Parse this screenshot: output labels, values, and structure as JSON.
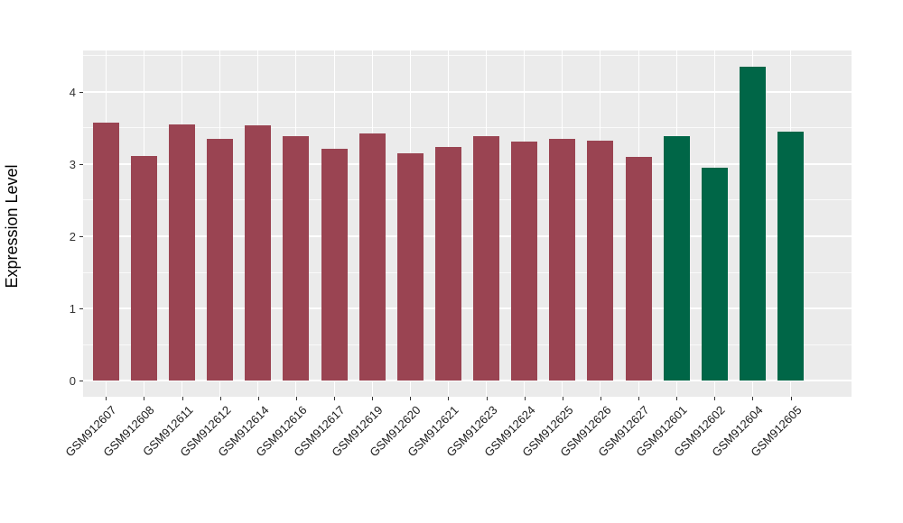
{
  "chart_data": {
    "type": "bar",
    "title": "",
    "xlabel": "",
    "ylabel": "Expression Level",
    "categories": [
      "GSM912607",
      "GSM912608",
      "GSM912611",
      "GSM912612",
      "GSM912614",
      "GSM912616",
      "GSM912617",
      "GSM912619",
      "GSM912620",
      "GSM912621",
      "GSM912623",
      "GSM912624",
      "GSM912625",
      "GSM912626",
      "GSM912627",
      "GSM912601",
      "GSM912602",
      "GSM912604",
      "GSM912605"
    ],
    "values": [
      3.57,
      3.11,
      3.55,
      3.35,
      3.54,
      3.39,
      3.21,
      3.42,
      3.15,
      3.23,
      3.38,
      3.31,
      3.35,
      3.32,
      3.1,
      3.39,
      2.95,
      4.34,
      3.45
    ],
    "bar_colors": [
      "#9A4452",
      "#9A4452",
      "#9A4452",
      "#9A4452",
      "#9A4452",
      "#9A4452",
      "#9A4452",
      "#9A4452",
      "#9A4452",
      "#9A4452",
      "#9A4452",
      "#9A4452",
      "#9A4452",
      "#9A4452",
      "#9A4452",
      "#006647",
      "#006647",
      "#006647",
      "#006647"
    ],
    "group_colors": {
      "maroon": "#9A4452",
      "green": "#006647"
    },
    "yticks": [
      0,
      1,
      2,
      3,
      4
    ],
    "minor_yticks": [
      0.5,
      1.5,
      2.5,
      3.5,
      4.5
    ],
    "ylim": [
      -0.22,
      4.57
    ],
    "grid": "on",
    "legend_position": "none",
    "panel_background": "#EBEBEB",
    "grid_color": "#FFFFFF",
    "axis_text_color": "#333333",
    "x_tick_angle_deg": 45
  }
}
